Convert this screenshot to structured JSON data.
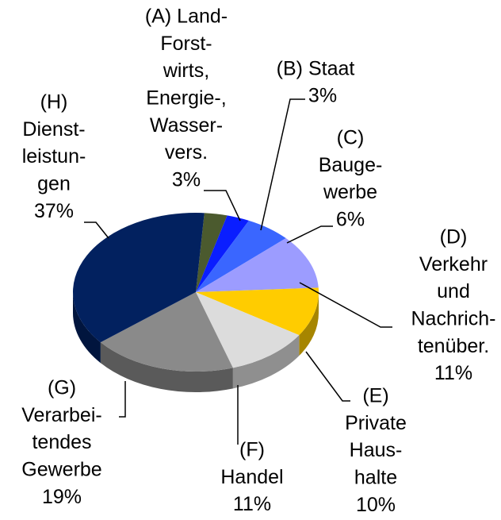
{
  "chart_data": {
    "type": "pie3d",
    "categories": [
      [
        "(A) Land-",
        "Forst-",
        "wirts,",
        "Energie-,",
        "Wasser-",
        "vers."
      ],
      [
        "(B) Staat"
      ],
      [
        "(C)",
        "Bauge-",
        "werbe"
      ],
      [
        "(D)",
        "Verkehr",
        "und",
        "Nachrich-",
        "tenüber."
      ],
      [
        "(E)",
        "Private",
        "Haus-",
        "halte"
      ],
      [
        "(F)",
        "Handel"
      ],
      [
        "(G)",
        "Verarbei-",
        "tendes",
        "Gewerbe"
      ],
      [
        "(H)",
        "Dienst-",
        "leistun-",
        "gen"
      ]
    ],
    "values": [
      3,
      3,
      6,
      11,
      10,
      11,
      19,
      37
    ],
    "value_labels": [
      "3%",
      "3%",
      "6%",
      "11%",
      "10%",
      "11%",
      "19%",
      "37%"
    ],
    "colors": [
      "#4b5a2e",
      "#0a1eff",
      "#3a66ff",
      "#9c9cff",
      "#ffcc00",
      "#dcdcdc",
      "#8a8a8a",
      "#02215f"
    ]
  }
}
